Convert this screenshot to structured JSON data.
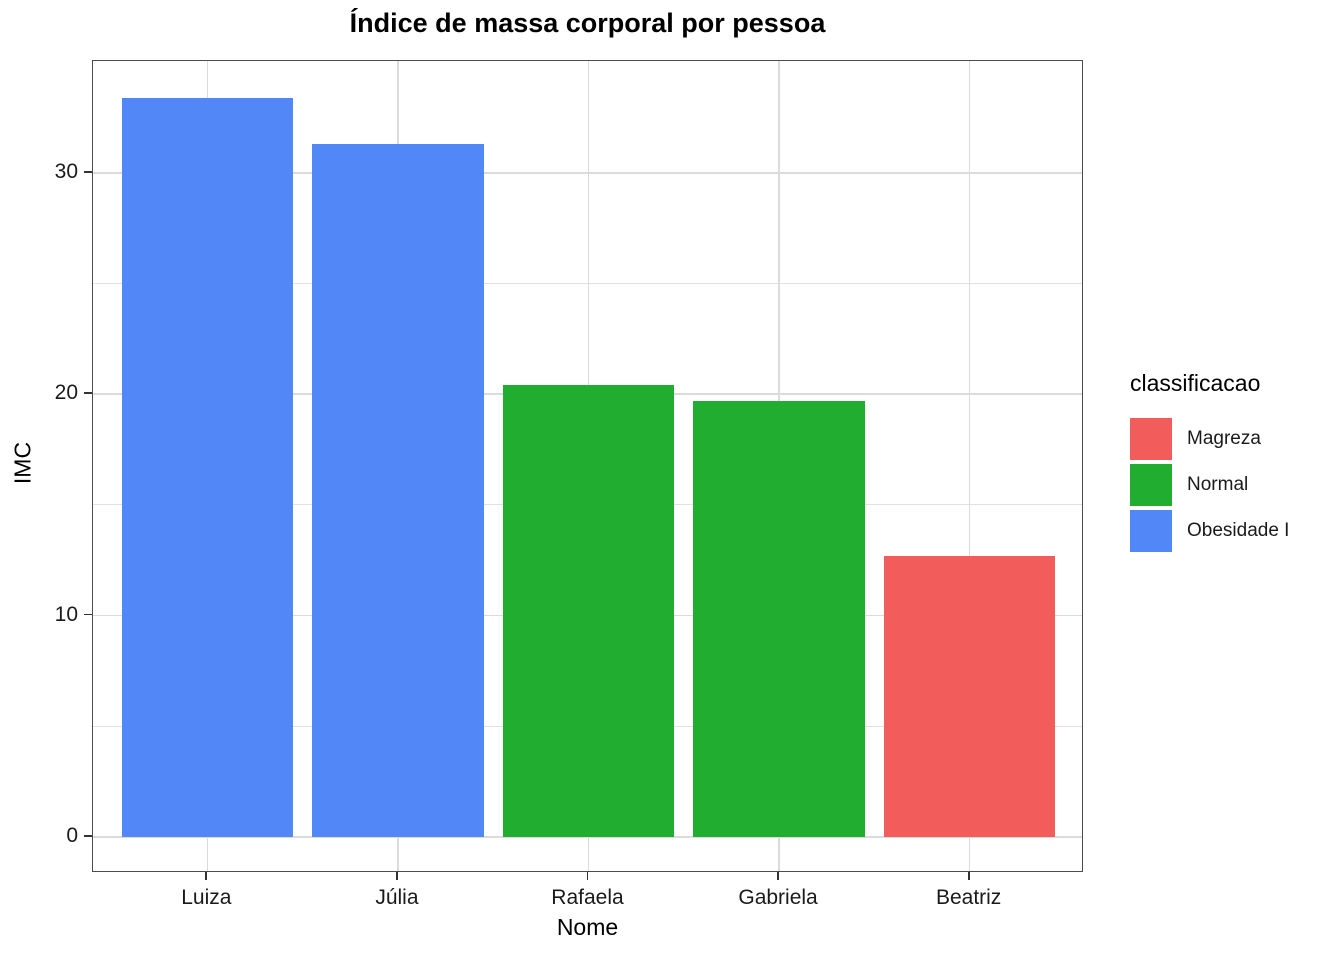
{
  "chart_data": {
    "type": "bar",
    "title": "Índice de massa corporal por pessoa",
    "xlabel": "Nome",
    "ylabel": "IMC",
    "categories": [
      "Luiza",
      "Júlia",
      "Rafaela",
      "Gabriela",
      "Beatriz"
    ],
    "values": [
      33.4,
      31.3,
      20.4,
      19.7,
      12.7
    ],
    "classifications": [
      "Obesidade I",
      "Obesidade I",
      "Normal",
      "Normal",
      "Magreza"
    ],
    "ylim": [
      0,
      35
    ],
    "y_major_ticks": [
      0,
      10,
      20,
      30
    ],
    "y_minor_ticks": [
      5,
      15,
      25
    ],
    "grid": "major-and-minor-horizontal, major-vertical",
    "legend": {
      "title": "classificacao",
      "position": "right",
      "entries": [
        {
          "label": "Magreza",
          "color": "#f25d5b"
        },
        {
          "label": "Normal",
          "color": "#20ad30"
        },
        {
          "label": "Obesidade I",
          "color": "#5287f7"
        }
      ]
    }
  }
}
